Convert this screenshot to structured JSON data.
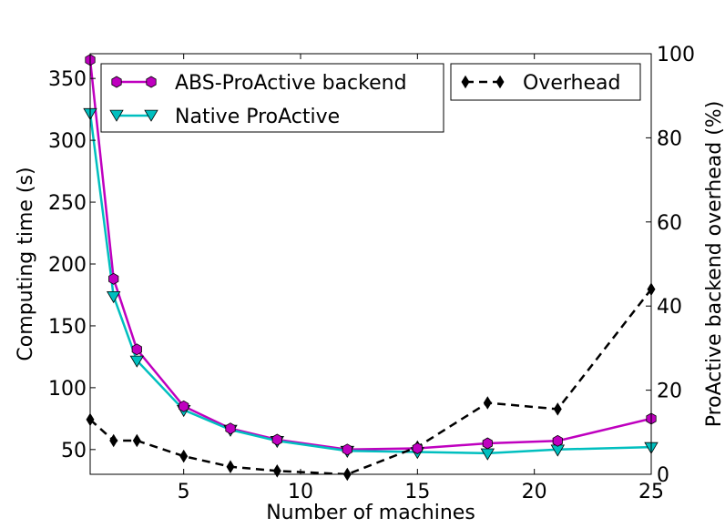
{
  "chart_data": {
    "type": "line",
    "xlabel": "Number of machines",
    "ylabel_left": "Computing time (s)",
    "ylabel_right": "ProActive backend overhead (%)",
    "xlim": [
      1,
      25
    ],
    "ylim_left": [
      30,
      370
    ],
    "ylim_right": [
      0,
      100
    ],
    "xticks": [
      5,
      10,
      15,
      20,
      25
    ],
    "yticks_left": [
      50,
      100,
      150,
      200,
      250,
      300,
      350
    ],
    "yticks_right": [
      0,
      20,
      40,
      60,
      80,
      100
    ],
    "grid": false,
    "legend_left_placement": "top-left",
    "legend_right_placement": "top-right",
    "series": [
      {
        "name": "ABS-ProActive backend",
        "axis": "left",
        "color": "#bf00bf",
        "marker": "hexagon",
        "linestyle": "solid",
        "x": [
          1,
          2,
          3,
          5,
          7,
          9,
          12,
          15,
          18,
          21,
          25
        ],
        "values": [
          365,
          188,
          131,
          85,
          67,
          58,
          50,
          51,
          55,
          57,
          75
        ]
      },
      {
        "name": "Native ProActive",
        "axis": "left",
        "color": "#00bfbf",
        "marker": "triangle-down",
        "linestyle": "solid",
        "x": [
          1,
          2,
          3,
          5,
          7,
          9,
          12,
          15,
          18,
          21,
          25
        ],
        "values": [
          322,
          174,
          122,
          82,
          66,
          57,
          49,
          48,
          47,
          50,
          52
        ]
      },
      {
        "name": "Overhead",
        "axis": "right",
        "color": "#000000",
        "marker": "thin-diamond",
        "linestyle": "dashed",
        "x": [
          1,
          2,
          3,
          5,
          7,
          9,
          12,
          15,
          18,
          21,
          25
        ],
        "values": [
          13,
          8,
          8,
          4.3,
          1.8,
          0.8,
          0,
          6.5,
          17,
          15.5,
          44
        ]
      }
    ]
  }
}
